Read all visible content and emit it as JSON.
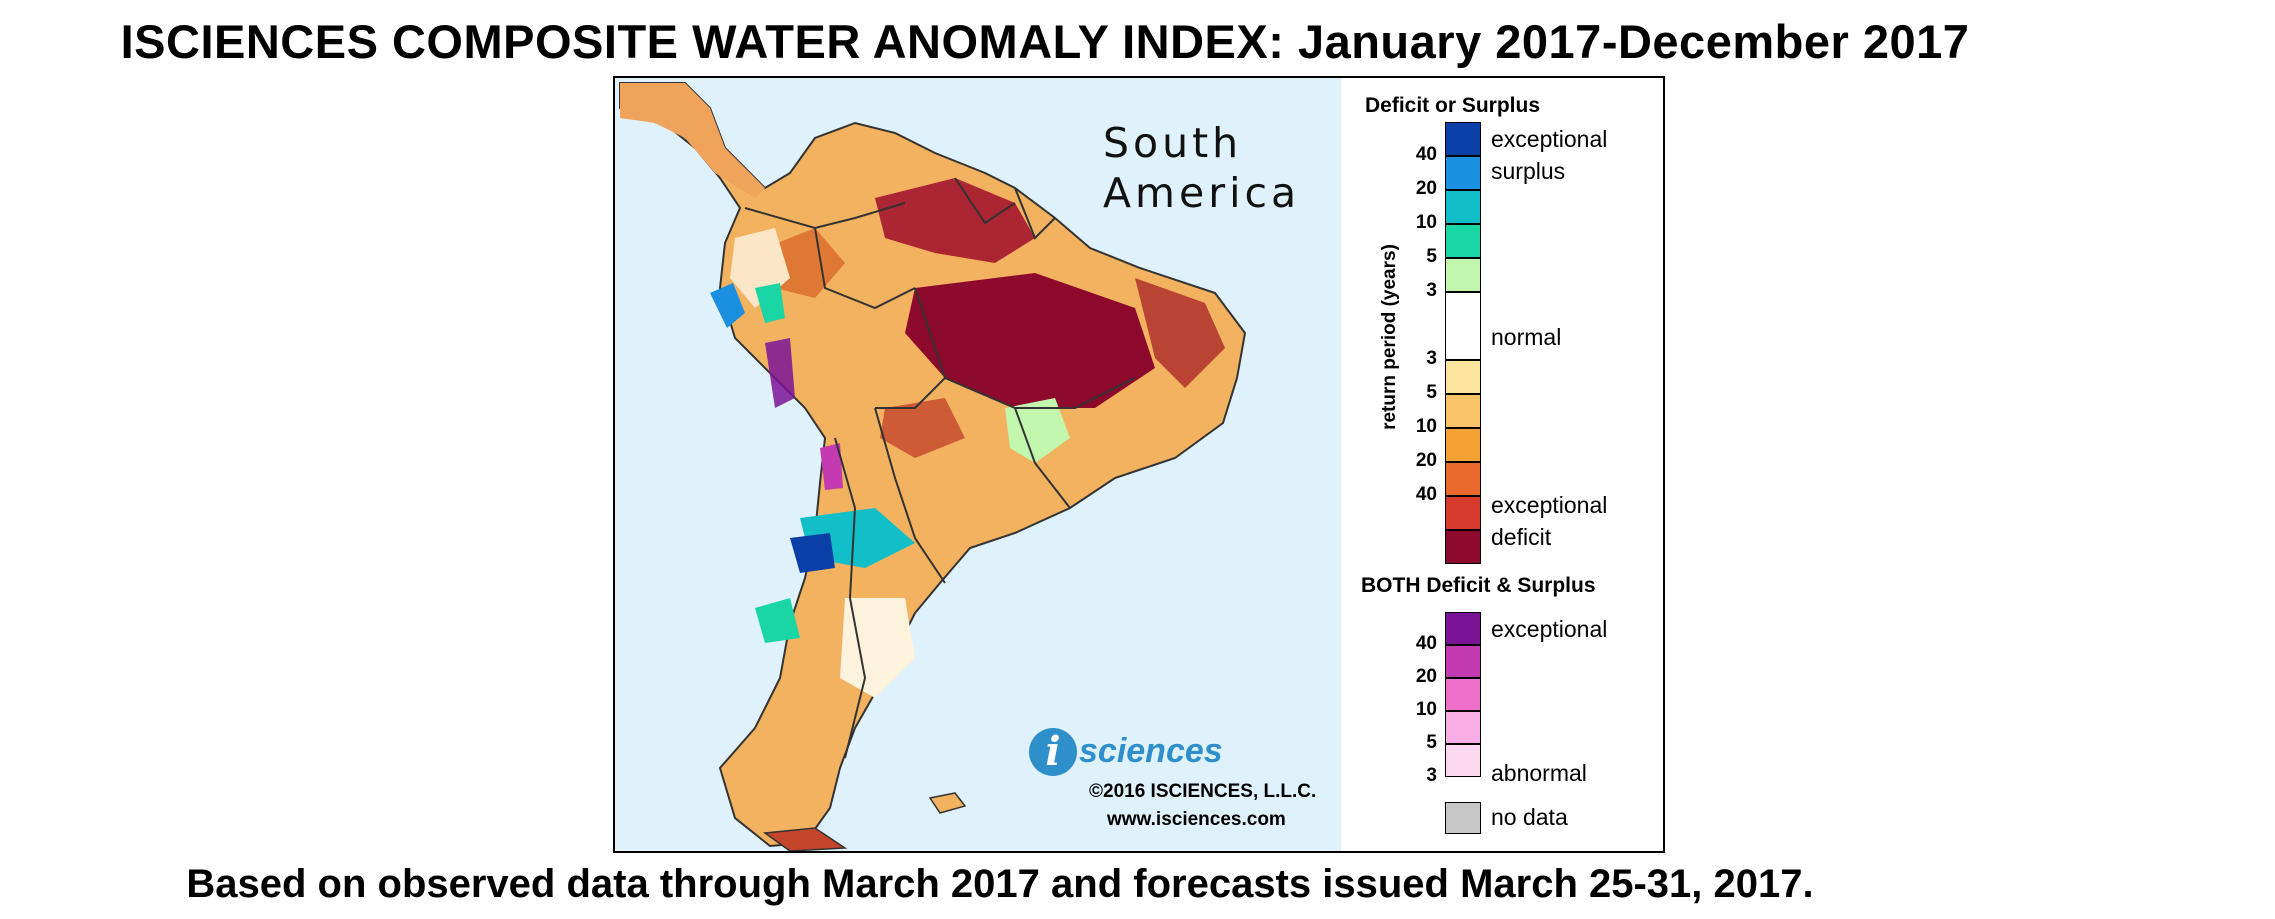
{
  "title": "ISCIENCES COMPOSITE WATER ANOMALY INDEX: January 2017-December 2017",
  "footer": "Based on observed data through March 2017 and forecasts issued March 25-31, 2017.",
  "map": {
    "region_label_line1": "South",
    "region_label_line2": "America",
    "ocean_color": "#dff2fb",
    "land_color": "#f2b25f",
    "deficit_dark": "#8e0a2c",
    "logo_letter": "i",
    "logo_text": "sciences",
    "copyright": "©2016 ISCIENCES, L.L.C.",
    "website": "www.isciences.com"
  },
  "legend": {
    "deficit_surplus_title": "Deficit or Surplus",
    "axis_label": "return period (years)",
    "scale": [
      {
        "color": "#0a3fa8"
      },
      {
        "color": "#1b8fe0"
      },
      {
        "color": "#12bfc9"
      },
      {
        "color": "#1ad6a4"
      },
      {
        "color": "#c4f7ae"
      },
      {
        "color": "#ffffff"
      },
      {
        "color": "#fbe59d"
      },
      {
        "color": "#f9c467"
      },
      {
        "color": "#f5a235"
      },
      {
        "color": "#ea6a2d"
      },
      {
        "color": "#d73b2e"
      },
      {
        "color": "#8e0a2c"
      }
    ],
    "ticks": [
      "40",
      "20",
      "10",
      "5",
      "3",
      "3",
      "5",
      "10",
      "20",
      "40"
    ],
    "labels": {
      "exceptional_surplus_1": "exceptional",
      "exceptional_surplus_2": "surplus",
      "normal": "normal",
      "exceptional_deficit_1": "exceptional",
      "exceptional_deficit_2": "deficit"
    },
    "both_title": "BOTH Deficit & Surplus",
    "both_scale": [
      {
        "color": "#7a1497"
      },
      {
        "color": "#c23bb0"
      },
      {
        "color": "#ef70cb"
      },
      {
        "color": "#f9aee6"
      },
      {
        "color": "#fcd9f0"
      }
    ],
    "both_ticks": [
      "40",
      "20",
      "10",
      "5",
      "3"
    ],
    "both_labels": {
      "top": "exceptional",
      "bottom": "abnormal"
    },
    "no_data_color": "#c7c7c7",
    "no_data_label": "no data"
  }
}
